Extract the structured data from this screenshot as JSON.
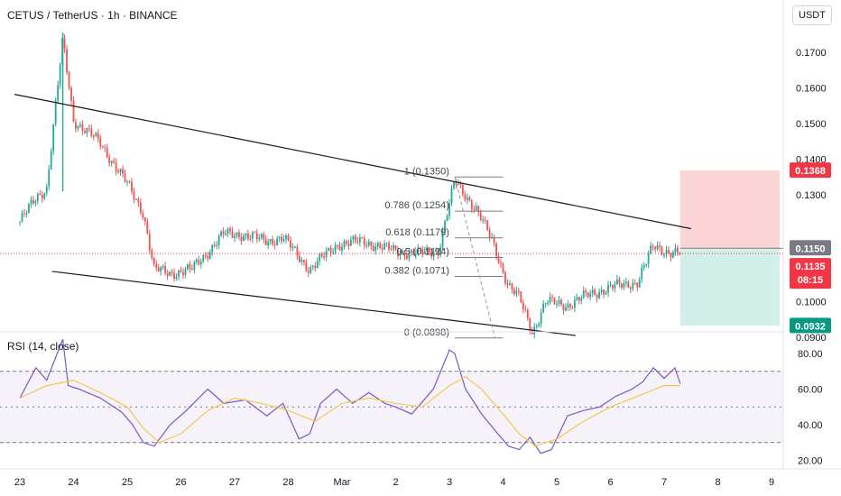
{
  "header": {
    "symbol_title": "CETUS / TetherUS · 1h · BINANCE",
    "currency_button": "USDT"
  },
  "rsi_panel": {
    "label": "RSI (14, close)"
  },
  "colors": {
    "up": "#26a69a",
    "down": "#ef5350",
    "rsi_line": "#7e57c2",
    "rsi_ma": "#f2c94c",
    "stop_zone": "#fbd5d5",
    "target_zone": "#d3efe9",
    "entry_tag": "#787b86",
    "last_price_tag": "#f23645",
    "target_tag": "#089981"
  },
  "chart_data": [
    {
      "type": "candlestick",
      "pair": "CETUS / TetherUS",
      "timeframe": "1h",
      "exchange": "BINANCE",
      "x_tick_labels": [
        "23",
        "24",
        "25",
        "26",
        "27",
        "28",
        "Mar",
        "2",
        "3",
        "4",
        "5",
        "6",
        "7",
        "8",
        "9"
      ],
      "y_tick_labels": [
        "0.1700",
        "0.1600",
        "0.1500",
        "0.1400",
        "0.1300",
        "0.1150",
        "0.1000",
        "0.0900"
      ],
      "ylim": [
        0.0885,
        0.1775
      ],
      "price_path": {
        "x": [
          0.0,
          0.3,
          0.5,
          0.8,
          1.0,
          1.5,
          2.0,
          2.3,
          2.5,
          2.8,
          3.2,
          3.8,
          4.1,
          4.6,
          4.9,
          5.4,
          5.9,
          6.4,
          6.8,
          7.1,
          7.4,
          7.8,
          8.1,
          8.5,
          8.8,
          9.1,
          9.3,
          9.55,
          9.8,
          10.2,
          10.6,
          11.0,
          11.5,
          11.8,
          12.1,
          12.3
        ],
        "y": [
          0.1225,
          0.129,
          0.132,
          0.1735,
          0.151,
          0.1445,
          0.133,
          0.125,
          0.109,
          0.108,
          0.109,
          0.119,
          0.119,
          0.117,
          0.118,
          0.109,
          0.116,
          0.117,
          0.115,
          0.114,
          0.1135,
          0.1145,
          0.1338,
          0.126,
          0.117,
          0.1045,
          0.101,
          0.0915,
          0.1,
          0.099,
          0.102,
          0.104,
          0.1055,
          0.1155,
          0.114,
          0.1135
        ]
      },
      "channel": {
        "upper_line": {
          "start": [
            -0.1,
            0.1582
          ],
          "end": [
            12.5,
            0.1205
          ]
        },
        "lower_line": {
          "start": [
            0.6,
            0.1085
          ],
          "end": [
            10.35,
            0.0905
          ]
        }
      },
      "fibonacci": {
        "levels": [
          {
            "label": "1 (0.1350)",
            "value": 0.135
          },
          {
            "label": "0.786 (0.1254)",
            "value": 0.1254
          },
          {
            "label": "0.618 (0.1179)",
            "value": 0.1179
          },
          {
            "label": "0.5 (0.1124)",
            "value": 0.1124
          },
          {
            "label": "0.382 (0.1071)",
            "value": 0.1071
          },
          {
            "label": "0 (0.0898)",
            "value": 0.0898
          }
        ],
        "x_range": [
          8.1,
          9.0
        ],
        "trend": {
          "from": [
            8.1,
            0.135
          ],
          "to": [
            8.85,
            0.0898
          ]
        }
      },
      "position": {
        "stop": 0.1368,
        "entry": 0.115,
        "target": 0.0932,
        "x_range": [
          12.3,
          14.15
        ]
      },
      "last_price": {
        "value": "0.1135",
        "countdown": "08:15",
        "y": 0.1135
      },
      "entry_tag": {
        "value": "0.1150",
        "y": 0.115
      },
      "stop_tag": {
        "value": "0.1368",
        "y": 0.1368
      },
      "target_tag": {
        "value": "0.0932",
        "y": 0.0932
      }
    },
    {
      "type": "line",
      "indicator": "RSI (14, close)",
      "y_tick_labels": [
        "80.00",
        "60.00",
        "40.00",
        "20.00"
      ],
      "ylim": [
        15,
        92
      ],
      "bands": {
        "upper": 70,
        "middle": 50,
        "lower": 30
      },
      "series": [
        {
          "x": [
            0.0,
            0.3,
            0.5,
            0.8,
            0.9,
            1.1,
            1.5,
            1.9,
            2.1,
            2.3,
            2.5,
            2.8,
            3.1,
            3.5,
            3.8,
            4.2,
            4.6,
            4.9,
            5.2,
            5.4,
            5.6,
            5.9,
            6.2,
            6.5,
            6.8,
            7.0,
            7.3,
            7.7,
            8.0,
            8.1,
            8.3,
            8.6,
            8.9,
            9.1,
            9.3,
            9.5,
            9.7,
            9.9,
            10.2,
            10.5,
            10.8,
            11.1,
            11.4,
            11.6,
            11.8,
            12.0,
            12.2,
            12.3
          ],
          "y": [
            55,
            72,
            65,
            88,
            62,
            60,
            55,
            47,
            40,
            30,
            28,
            40,
            48,
            60,
            52,
            54,
            45,
            52,
            32,
            35,
            52,
            60,
            52,
            58,
            52,
            50,
            46,
            60,
            82,
            80,
            60,
            46,
            35,
            28,
            26,
            33,
            24,
            26,
            45,
            48,
            50,
            56,
            60,
            64,
            72,
            66,
            72,
            63
          ]
        },
        {
          "x": [
            0.0,
            0.5,
            1.0,
            1.5,
            2.0,
            2.3,
            2.6,
            3.0,
            3.5,
            4.0,
            4.5,
            5.0,
            5.5,
            6.0,
            6.5,
            7.0,
            7.5,
            8.0,
            8.3,
            8.6,
            9.0,
            9.3,
            9.6,
            10.0,
            10.5,
            11.0,
            11.5,
            12.0,
            12.3
          ],
          "y": [
            55,
            62,
            65,
            58,
            50,
            38,
            30,
            35,
            48,
            55,
            52,
            48,
            42,
            52,
            55,
            52,
            50,
            62,
            67,
            60,
            46,
            35,
            28,
            32,
            42,
            50,
            56,
            62,
            62
          ]
        }
      ]
    }
  ]
}
